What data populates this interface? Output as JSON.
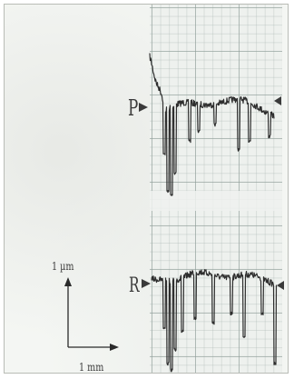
{
  "profiles": {
    "upper_label": "P",
    "lower_label": "R"
  },
  "scale_bars": {
    "vertical": "1 µm",
    "horizontal": "1 mm"
  },
  "colors": {
    "trace": "#2e2e2e",
    "grid": "#8c9b96",
    "paper": "#eef1ee",
    "marker": "#3a3a3a"
  }
}
